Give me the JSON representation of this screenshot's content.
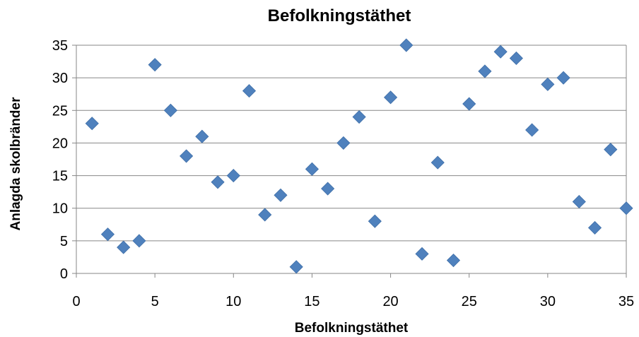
{
  "chart_data": {
    "type": "scatter",
    "title": "Befolkningstäthet",
    "xlabel": "Befolkningstäthet",
    "ylabel": "Anlagda skolbränder",
    "xlim": [
      0,
      35
    ],
    "ylim": [
      0,
      35
    ],
    "xticks": [
      "0",
      "5",
      "10",
      "15",
      "20",
      "25",
      "30",
      "35"
    ],
    "yticks": [
      "0",
      "5",
      "10",
      "15",
      "20",
      "25",
      "30",
      "35"
    ],
    "grid": true,
    "legend": "none",
    "marker": "diamond",
    "color": "#4F81BD",
    "points": [
      [
        1,
        23
      ],
      [
        2,
        6
      ],
      [
        3,
        4
      ],
      [
        4,
        5
      ],
      [
        5,
        32
      ],
      [
        6,
        25
      ],
      [
        7,
        18
      ],
      [
        8,
        21
      ],
      [
        9,
        14
      ],
      [
        10,
        15
      ],
      [
        11,
        28
      ],
      [
        12,
        9
      ],
      [
        13,
        12
      ],
      [
        14,
        1
      ],
      [
        15,
        16
      ],
      [
        16,
        13
      ],
      [
        17,
        20
      ],
      [
        18,
        24
      ],
      [
        19,
        8
      ],
      [
        20,
        27
      ],
      [
        21,
        35
      ],
      [
        22,
        3
      ],
      [
        23,
        17
      ],
      [
        24,
        2
      ],
      [
        25,
        26
      ],
      [
        26,
        31
      ],
      [
        27,
        34
      ],
      [
        28,
        33
      ],
      [
        29,
        22
      ],
      [
        30,
        29
      ],
      [
        31,
        30
      ],
      [
        32,
        11
      ],
      [
        33,
        7
      ],
      [
        34,
        19
      ],
      [
        35,
        10
      ]
    ]
  }
}
